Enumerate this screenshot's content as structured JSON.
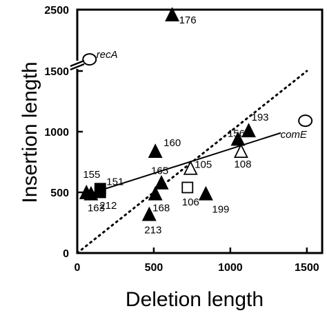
{
  "chart_data": {
    "type": "scatter",
    "xlabel": "Deletion length",
    "ylabel": "Insertion length",
    "xlim": [
      0,
      1600
    ],
    "ylim": [
      0,
      1750
    ],
    "ylim_upper_segment": [
      1750,
      2500
    ],
    "axis_break": "y between 1500 and 2500",
    "x_ticks": [
      "0",
      "500",
      "1000",
      "1500"
    ],
    "x_tick_values": [
      0,
      500,
      1000,
      1500
    ],
    "y_ticks": [
      "0",
      "500",
      "1000",
      "1500",
      "2500"
    ],
    "y_tick_values": [
      0,
      500,
      1000,
      1500,
      2500
    ],
    "grid": false,
    "series": [
      {
        "marker": "filled-triangle",
        "points": [
          {
            "label": "176",
            "x": 620,
            "y": 2400
          },
          {
            "label": "155",
            "x": 60,
            "y": 490
          },
          {
            "label": "163",
            "x": 90,
            "y": 480
          },
          {
            "label": "160",
            "x": 510,
            "y": 830
          },
          {
            "label": "165",
            "x": 550,
            "y": 570
          },
          {
            "label": "168",
            "x": 510,
            "y": 480
          },
          {
            "label": "213",
            "x": 470,
            "y": 310
          },
          {
            "label": "199",
            "x": 840,
            "y": 480
          },
          {
            "label": "156",
            "x": 1050,
            "y": 930
          },
          {
            "label": "193",
            "x": 1120,
            "y": 1000
          }
        ]
      },
      {
        "marker": "open-triangle",
        "points": [
          {
            "label": "105",
            "x": 740,
            "y": 690
          },
          {
            "label": "108",
            "x": 1070,
            "y": 830
          }
        ]
      },
      {
        "marker": "filled-square",
        "points": [
          {
            "label": "151",
            "x": 150,
            "y": 530
          },
          {
            "label": "212",
            "x": 150,
            "y": 500
          }
        ]
      },
      {
        "marker": "open-square",
        "points": [
          {
            "label": "106",
            "x": 720,
            "y": 540
          }
        ]
      },
      {
        "marker": "open-circle",
        "points": [
          {
            "label": "recA",
            "x": 80,
            "y": 1690
          },
          {
            "label": "comE",
            "x": 1490,
            "y": 1090
          }
        ]
      }
    ],
    "lines": [
      {
        "style": "solid",
        "x": [
          60,
          1330
        ],
        "y": [
          480,
          990
        ]
      },
      {
        "style": "dotted",
        "x": [
          0,
          1500
        ],
        "y": [
          0,
          1500
        ]
      }
    ]
  }
}
